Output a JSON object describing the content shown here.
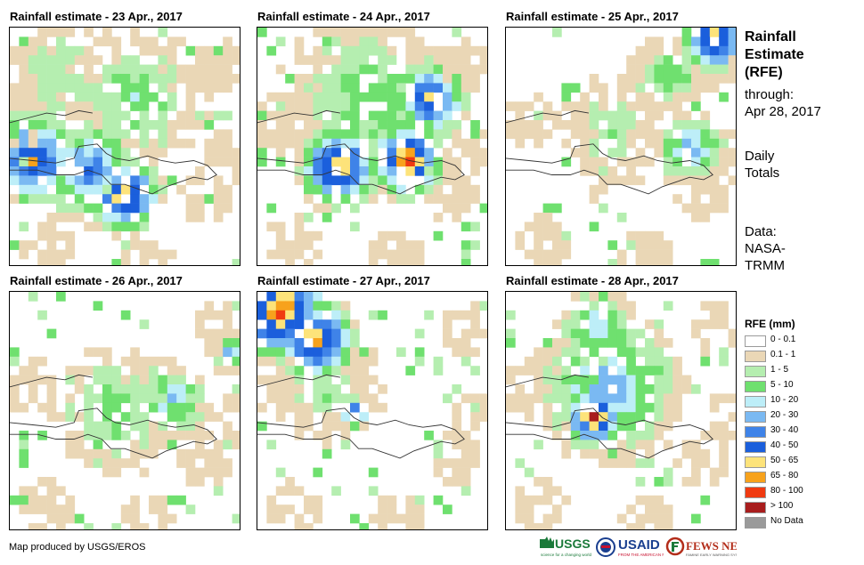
{
  "panels": [
    {
      "title": "Rainfall estimate - 23 Apr., 2017",
      "date": "23 Apr., 2017"
    },
    {
      "title": "Rainfall estimate - 24 Apr., 2017",
      "date": "24 Apr., 2017"
    },
    {
      "title": "Rainfall estimate - 25 Apr., 2017",
      "date": "25 Apr., 2017"
    },
    {
      "title": "Rainfall estimate - 26 Apr., 2017",
      "date": "26 Apr., 2017"
    },
    {
      "title": "Rainfall estimate - 27 Apr., 2017",
      "date": "27 Apr., 2017"
    },
    {
      "title": "Rainfall estimate - 28 Apr., 2017",
      "date": "28 Apr., 2017"
    }
  ],
  "sidebar": {
    "title_line1": "Rainfall",
    "title_line2": "Estimate",
    "title_line3": "(RFE)",
    "through_label": "through:",
    "through_date": "Apr 28, 2017",
    "totals_line1": "Daily",
    "totals_line2": "Totals",
    "data_label": "Data:",
    "data_source1": "NASA-",
    "data_source2": "TRMM"
  },
  "legend": {
    "title": "RFE (mm)",
    "items": [
      {
        "label": "0 - 0.1",
        "color": "#ffffff"
      },
      {
        "label": "0.1 - 1",
        "color": "#ead7b6"
      },
      {
        "label": "1 - 5",
        "color": "#b5eeb0"
      },
      {
        "label": "5 - 10",
        "color": "#6fe06f"
      },
      {
        "label": "10 - 20",
        "color": "#bdeef8"
      },
      {
        "label": "20 - 30",
        "color": "#7ab9f2"
      },
      {
        "label": "30 - 40",
        "color": "#3f83e8"
      },
      {
        "label": "40 - 50",
        "color": "#1b5fdc"
      },
      {
        "label": "50 - 65",
        "color": "#fde37a"
      },
      {
        "label": "65 - 80",
        "color": "#f7a21c"
      },
      {
        "label": "80 - 100",
        "color": "#f03a10"
      },
      {
        "label": "> 100",
        "color": "#a81d1d"
      },
      {
        "label": "No Data",
        "color": "#9a9a9a"
      }
    ]
  },
  "footer": {
    "credit": "Map produced by USGS/EROS",
    "logos": [
      "USGS",
      "USAID",
      "FEWS NET"
    ]
  },
  "colors": {
    "coast": "#333333",
    "usgs_green": "#1b7a3a",
    "usaid_blue": "#1a3f8f",
    "usaid_red": "#c8102e",
    "fews_red": "#b32d1a"
  }
}
